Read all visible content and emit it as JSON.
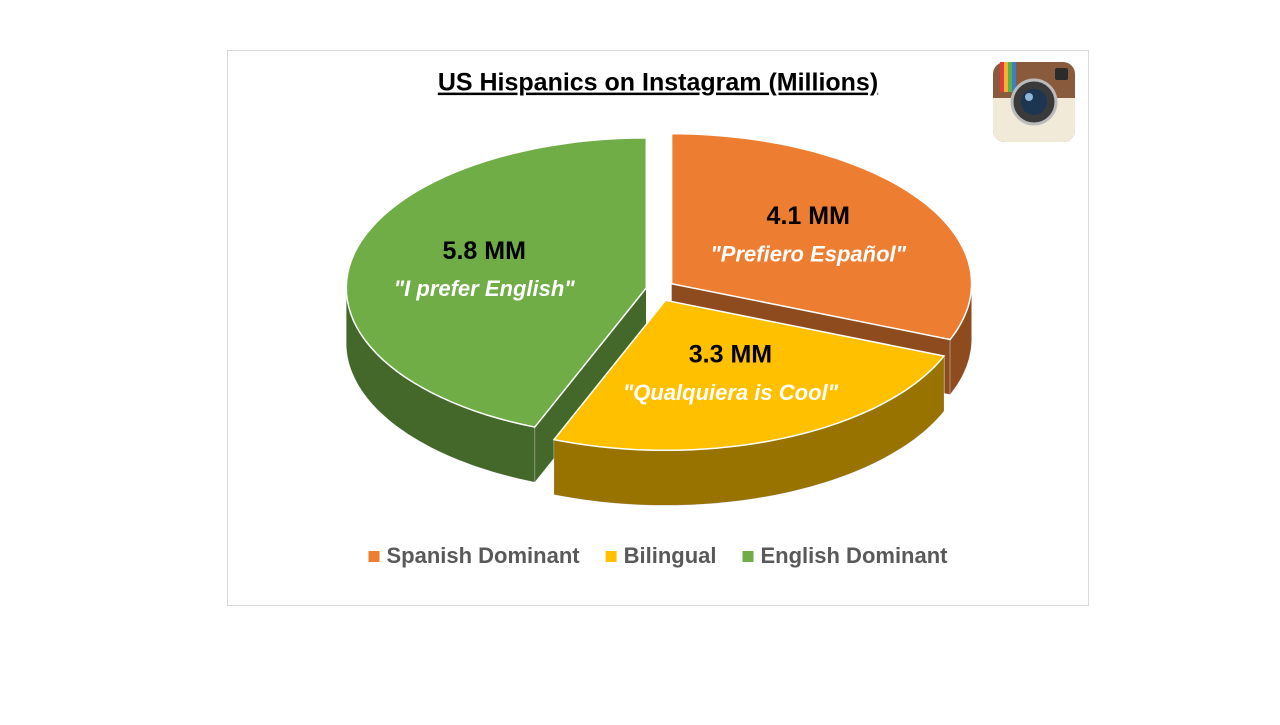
{
  "chart_data": {
    "type": "pie",
    "title": "US Hispanics on Instagram (Millions)",
    "categories": [
      "Spanish Dominant",
      "Bilingual",
      "English Dominant"
    ],
    "values": [
      4.1,
      3.3,
      5.8
    ],
    "value_labels": [
      "4.1 MM",
      "3.3 MM",
      "5.8 MM"
    ],
    "annotations": [
      "\"Prefiero Español\"",
      "\"Qualquiera is Cool\"",
      "\"I prefer English\""
    ],
    "colors": [
      "#ed7d31",
      "#ffc000",
      "#70ad47"
    ],
    "legend": "bottom"
  }
}
